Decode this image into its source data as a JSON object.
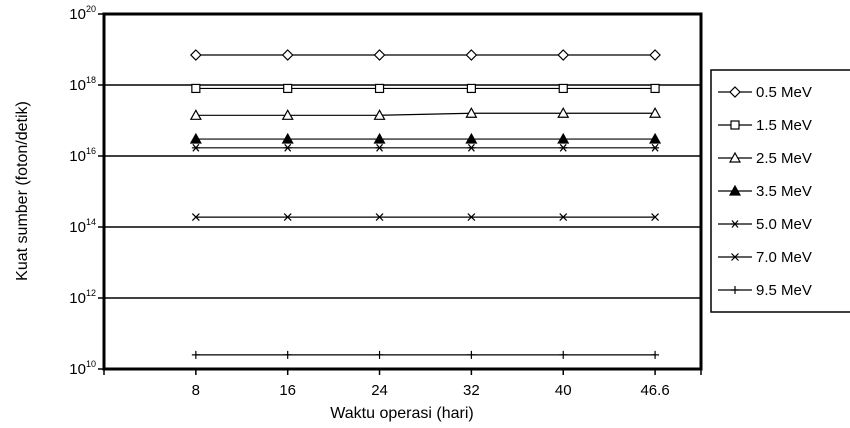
{
  "chart_data": {
    "type": "line",
    "xlabel": "Waktu operasi (hari)",
    "ylabel": "Kuat sumber (foton/detik)",
    "y_scale": "log",
    "ylim": [
      10000000000.0,
      1e+20
    ],
    "x_ticks": [
      "8",
      "16",
      "24",
      "32",
      "40",
      "46.6"
    ],
    "x": [
      8,
      16,
      24,
      32,
      40,
      46.6
    ],
    "y_ticks": [
      {
        "base": "10",
        "exp": "10"
      },
      {
        "base": "10",
        "exp": "12"
      },
      {
        "base": "10",
        "exp": "14"
      },
      {
        "base": "10",
        "exp": "16"
      },
      {
        "base": "10",
        "exp": "18"
      },
      {
        "base": "10",
        "exp": "20"
      }
    ],
    "grid": "horizontal major lines at 1e12, 1e14, 1e16, 1e18",
    "legend_position": "right",
    "series": [
      {
        "name": "0.5 MeV",
        "marker": "diamond-open",
        "values": [
          7e+18,
          7e+18,
          7e+18,
          7e+18,
          7e+18,
          7e+18
        ]
      },
      {
        "name": "1.5 MeV",
        "marker": "square-open",
        "values": [
          8e+17,
          8e+17,
          8e+17,
          8e+17,
          8e+17,
          8e+17
        ]
      },
      {
        "name": "2.5 MeV",
        "marker": "triangle-open",
        "values": [
          1.4e+17,
          1.4e+17,
          1.4e+17,
          1.6e+17,
          1.6e+17,
          1.6e+17
        ]
      },
      {
        "name": "3.5 MeV",
        "marker": "triangle-filled",
        "values": [
          3e+16,
          3e+16,
          3e+16,
          3e+16,
          3e+16,
          3e+16
        ]
      },
      {
        "name": "5.0 MeV",
        "marker": "asterisk",
        "values": [
          1.7e+16,
          1.7e+16,
          1.7e+16,
          1.7e+16,
          1.7e+16,
          1.7e+16
        ]
      },
      {
        "name": "7.0 MeV",
        "marker": "x",
        "values": [
          190000000000000.0,
          190000000000000.0,
          190000000000000.0,
          190000000000000.0,
          190000000000000.0,
          190000000000000.0
        ]
      },
      {
        "name": "9.5 MeV",
        "marker": "plus",
        "values": [
          25000000000.0,
          25000000000.0,
          25000000000.0,
          25000000000.0,
          25000000000.0,
          25000000000.0
        ]
      }
    ]
  }
}
